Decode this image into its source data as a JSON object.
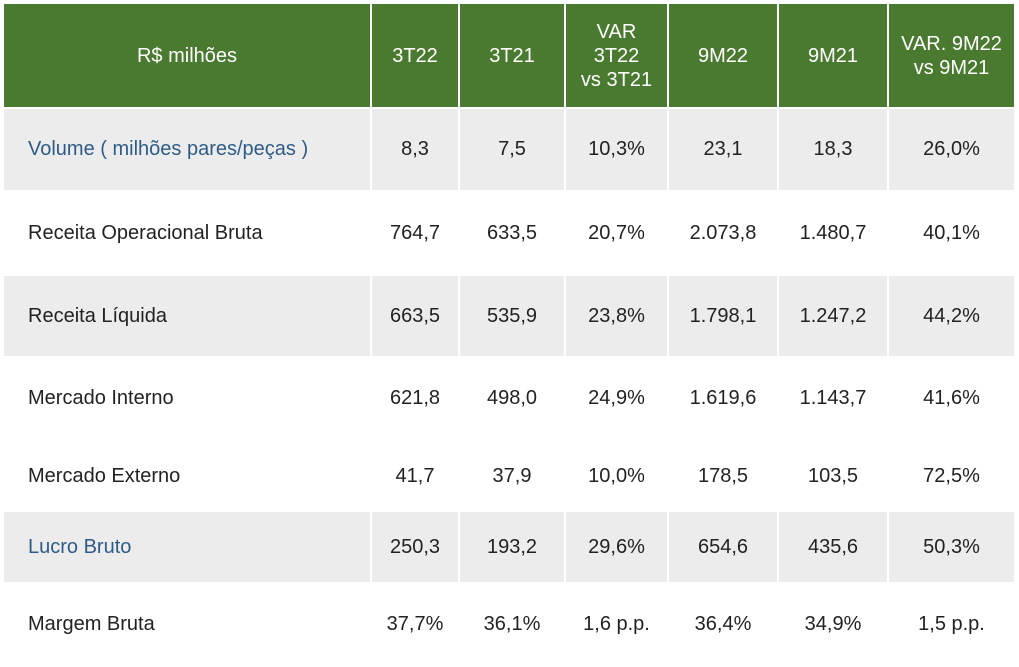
{
  "table": {
    "header": {
      "label": "R$ milhões",
      "columns": [
        "3T22",
        "3T21",
        "VAR 3T22\nvs 3T21",
        "9M22",
        "9M21",
        "VAR. 9M22\nvs 9M21"
      ]
    },
    "rows": [
      {
        "label": "Volume ( milhões pares/peças )",
        "values": [
          "8,3",
          "7,5",
          "10,3%",
          "23,1",
          "18,3",
          "26,0%"
        ]
      },
      {
        "label": "Receita Operacional Bruta",
        "values": [
          "764,7",
          "633,5",
          "20,7%",
          "2.073,8",
          "1.480,7",
          "40,1%"
        ]
      },
      {
        "label": "Receita Líquida",
        "values": [
          "663,5",
          "535,9",
          "23,8%",
          "1.798,1",
          "1.247,2",
          "44,2%"
        ]
      },
      {
        "label": "Mercado Interno",
        "values": [
          "621,8",
          "498,0",
          "24,9%",
          "1.619,6",
          "1.143,7",
          "41,6%"
        ]
      },
      {
        "label": "Mercado Externo",
        "values": [
          "41,7",
          "37,9",
          "10,0%",
          "178,5",
          "103,5",
          "72,5%"
        ]
      },
      {
        "label": "Lucro Bruto",
        "values": [
          "250,3",
          "193,2",
          "29,6%",
          "654,6",
          "435,6",
          "50,3%"
        ]
      },
      {
        "label": "Margem Bruta",
        "values": [
          "37,7%",
          "36,1%",
          "1,6 p.p.",
          "36,4%",
          "34,9%",
          "1,5 p.p."
        ]
      }
    ]
  },
  "colors": {
    "header_bg": "#4a7a30",
    "header_text": "#ffffff",
    "shaded_row": "#ececec",
    "accent_label": "#2e5c86",
    "body_text": "#222222"
  }
}
